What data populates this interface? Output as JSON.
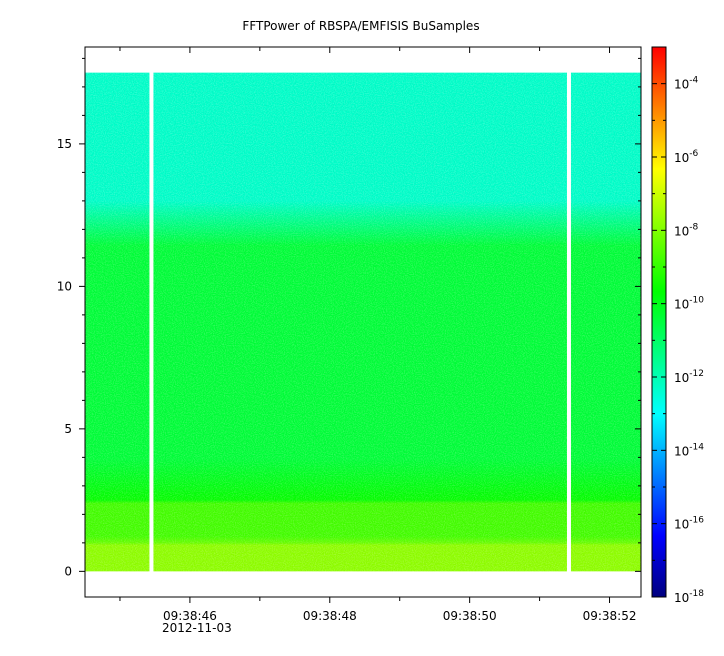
{
  "chart_data": {
    "type": "heatmap",
    "title": "FFTPower of RBSPA/EMFISIS  BuSamples",
    "xlabel": "",
    "ylabel": "",
    "x_ticks": [
      "09:38:46",
      "09:38:48",
      "09:38:50",
      "09:38:52"
    ],
    "x_tick_values": [
      46,
      48,
      50,
      52
    ],
    "x_minor_tick_values": [
      45,
      47,
      49,
      51
    ],
    "x_date_label": "2012-11-03",
    "xlim_seconds": [
      44.5,
      52.45
    ],
    "y_ticks": [
      "0",
      "5",
      "10",
      "15"
    ],
    "y_tick_values": [
      0,
      5,
      10,
      15
    ],
    "ylim": [
      -0.9,
      18.4
    ],
    "data_ylim": [
      0.0,
      17.5
    ],
    "gaps_seconds": [
      45.45,
      51.42
    ],
    "colorbar": {
      "scale": "log",
      "range": [
        1e-18,
        0.001
      ],
      "tick_base": "10",
      "tick_exponents": [
        "-18",
        "-16",
        "-14",
        "-12",
        "-10",
        "-8",
        "-6",
        "-4"
      ],
      "tick_log_values": [
        -18,
        -16,
        -14,
        -12,
        -10,
        -8,
        -6,
        -4
      ],
      "colors": [
        "#00007f",
        "#0000ff",
        "#0080ff",
        "#00ffff",
        "#00ff80",
        "#00ff00",
        "#80ff00",
        "#ffff00",
        "#ff8000",
        "#ff0000"
      ]
    },
    "spectrum_bands": [
      {
        "y_from": 12.2,
        "y_to": 17.5,
        "log_power": -12.3
      },
      {
        "y_from": 2.5,
        "y_to": 12.2,
        "log_power": -10.4
      },
      {
        "y_from": 1.0,
        "y_to": 2.5,
        "log_power": -8.8
      },
      {
        "y_from": 0.0,
        "y_to": 1.0,
        "log_power": -7.8
      }
    ]
  }
}
